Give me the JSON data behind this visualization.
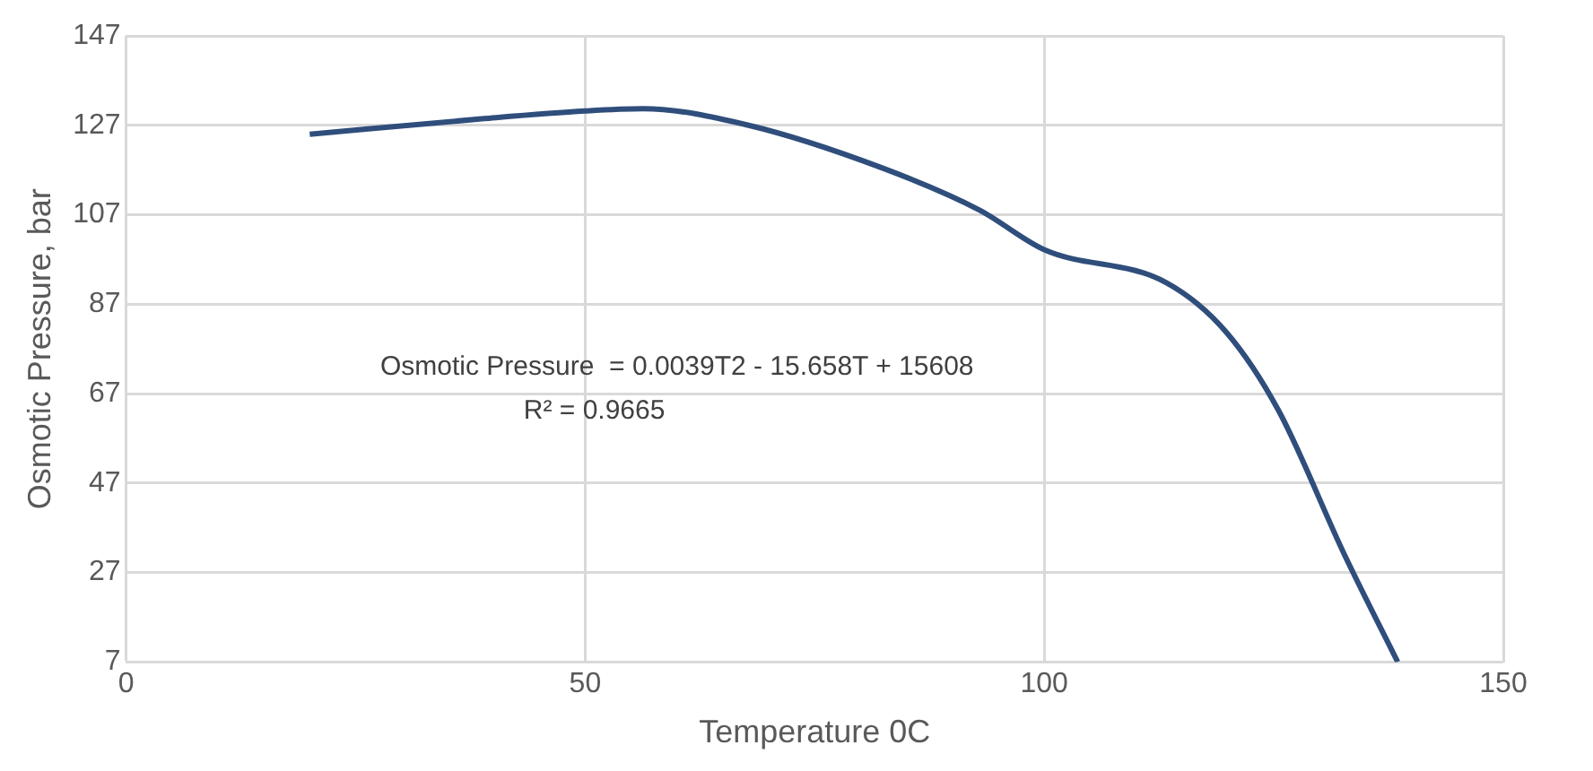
{
  "chart_data": {
    "type": "line",
    "xlabel": "Temperature 0C",
    "ylabel": "Osmotic Pressure, bar",
    "x": [
      20,
      39,
      50,
      56.3,
      67.8,
      82.3,
      93,
      100,
      113.3,
      119.8,
      125.5,
      132.7,
      138.5
    ],
    "series": [
      {
        "color": "#2f4e7c",
        "values": [
          125,
          128.5,
          130.2,
          130.7,
          127,
          117.5,
          108,
          99.2,
          91.8,
          80.8,
          63.3,
          31,
          7
        ]
      }
    ],
    "xlim": [
      0,
      150
    ],
    "xticks": [
      0,
      50,
      100,
      150
    ],
    "ylim": [
      7,
      147
    ],
    "yticks": [
      7,
      27,
      47,
      67,
      87,
      107,
      127,
      147
    ],
    "grid": true,
    "legend": false,
    "marker": "none",
    "line_style": "solid",
    "annotations": [
      "Osmotic Pressure  = 0.0039T2 - 15.658T + 15608",
      "R² = 0.9665"
    ]
  }
}
